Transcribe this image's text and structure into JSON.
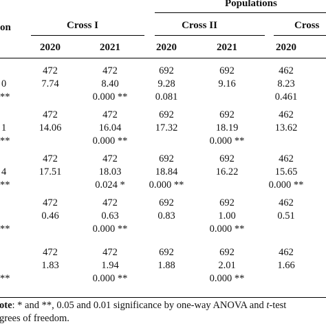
{
  "header": {
    "populations": "Populations",
    "left_fragment": "on",
    "groups": [
      {
        "label": "Cross I"
      },
      {
        "label": "Cross II"
      },
      {
        "label": "Cross"
      }
    ],
    "years": [
      "2020",
      "2021",
      "2020",
      "2021",
      "2020"
    ]
  },
  "rows": [
    {
      "left": [
        "0",
        "**"
      ],
      "cols": [
        [
          "472",
          "7.74",
          ""
        ],
        [
          "472",
          "8.40",
          "0.000 **"
        ],
        [
          "692",
          "9.28",
          "0.081"
        ],
        [
          "692",
          "9.16",
          ""
        ],
        [
          "462",
          "8.23",
          "0.461"
        ]
      ]
    },
    {
      "left": [
        "1",
        "**"
      ],
      "cols": [
        [
          "472",
          "14.06",
          ""
        ],
        [
          "472",
          "16.04",
          "0.000 **"
        ],
        [
          "692",
          "17.32",
          ""
        ],
        [
          "692",
          "18.19",
          "0.000 **"
        ],
        [
          "462",
          "13.62",
          ""
        ]
      ]
    },
    {
      "left": [
        "4",
        "**"
      ],
      "cols": [
        [
          "472",
          "17.51",
          ""
        ],
        [
          "472",
          "18.03",
          "0.024 *"
        ],
        [
          "692",
          "18.84",
          "0.000 **"
        ],
        [
          "692",
          "16.22",
          ""
        ],
        [
          "462",
          "15.65",
          "0.000 **"
        ]
      ]
    },
    {
      "left": [
        "",
        "**"
      ],
      "cols": [
        [
          "472",
          "0.46",
          ""
        ],
        [
          "472",
          "0.63",
          "0.000 **"
        ],
        [
          "692",
          "0.83",
          ""
        ],
        [
          "692",
          "1.00",
          "0.000 **"
        ],
        [
          "462",
          "0.51",
          ""
        ]
      ]
    },
    {
      "left": [
        "",
        "**"
      ],
      "cols": [
        [
          "472",
          "1.83",
          ""
        ],
        [
          "472",
          "1.94",
          "0.000 **"
        ],
        [
          "692",
          "1.88",
          ""
        ],
        [
          "692",
          "2.01",
          "0.000 **"
        ],
        [
          "462",
          "1.66",
          ""
        ]
      ]
    }
  ],
  "footnote": {
    "line1_bold": "ote",
    "line1_rest": ": * and **, 0.05 and 0.01 significance by one-way ANOVA and ",
    "line1_italic": "t",
    "line1_end": "-test",
    "line2": "grees of freedom."
  }
}
